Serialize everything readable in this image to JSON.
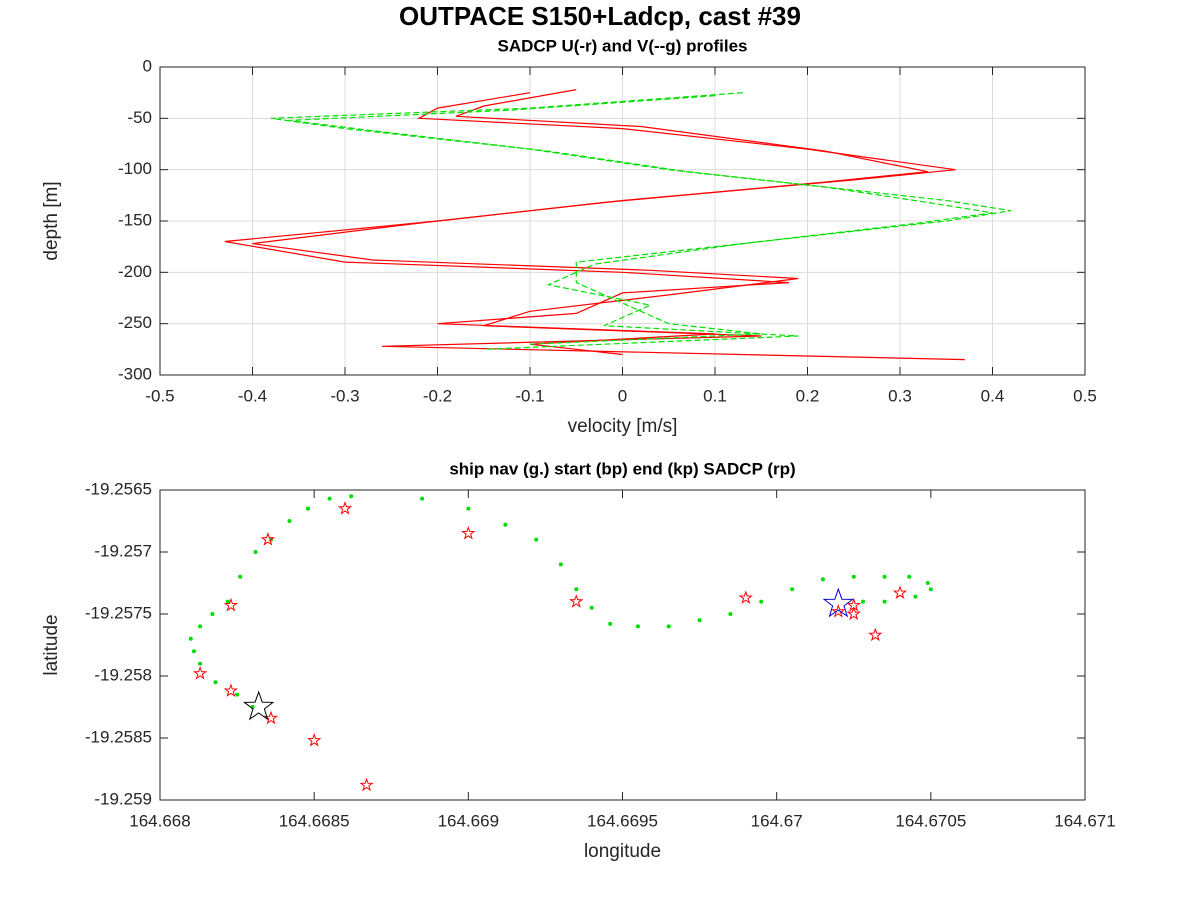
{
  "title": "OUTPACE S150+Ladcp, cast #39",
  "chart_data": [
    {
      "type": "line",
      "title": "SADCP U(-r) and V(--g) profiles",
      "xlabel": "velocity [m/s]",
      "ylabel": "depth [m]",
      "xlim": [
        -0.5,
        0.5
      ],
      "ylim": [
        -300,
        0
      ],
      "xticks": [
        -0.5,
        -0.4,
        -0.3,
        -0.2,
        -0.1,
        0,
        0.1,
        0.2,
        0.3,
        0.4,
        0.5
      ],
      "yticks": [
        -300,
        -250,
        -200,
        -150,
        -100,
        -50,
        0
      ],
      "grid": true,
      "series": [
        {
          "color": "#ff0000",
          "dash": false,
          "x": [
            -0.1,
            -0.2,
            -0.22,
            0.0,
            0.2,
            0.36,
            0.25,
            0.0,
            -0.2,
            -0.43,
            -0.3,
            0.0,
            0.18,
            0.0,
            -0.05,
            -0.2,
            0.1,
            -0.1,
            0.0
          ],
          "values": [
            -25,
            -40,
            -50,
            -60,
            -80,
            -100,
            -110,
            -130,
            -150,
            -170,
            -190,
            -200,
            -210,
            -220,
            -240,
            -250,
            -260,
            -270,
            -280
          ]
        },
        {
          "color": "#ff0000",
          "dash": false,
          "x": [
            -0.05,
            -0.15,
            -0.18,
            0.02,
            0.22,
            0.33,
            0.22,
            -0.02,
            -0.22,
            -0.4,
            -0.27,
            0.03,
            0.19,
            0.05,
            -0.1,
            -0.15,
            0.15,
            -0.26,
            0.37
          ],
          "values": [
            -22,
            -38,
            -48,
            -58,
            -82,
            -102,
            -112,
            -132,
            -152,
            -172,
            -188,
            -198,
            -206,
            -222,
            -238,
            -252,
            -262,
            -272,
            -285
          ]
        },
        {
          "color": "#00e000",
          "dash": true,
          "x": [
            0.13,
            -0.1,
            -0.38,
            -0.3,
            -0.1,
            0.05,
            0.2,
            0.35,
            0.42,
            0.35,
            0.15,
            -0.05,
            -0.05,
            0.0,
            0.05,
            0.15,
            -0.1
          ],
          "values": [
            -25,
            -40,
            -50,
            -60,
            -80,
            -100,
            -115,
            -130,
            -140,
            -150,
            -170,
            -190,
            -210,
            -230,
            -250,
            -260,
            -270
          ]
        },
        {
          "color": "#00e000",
          "dash": true,
          "x": [
            0.1,
            -0.12,
            -0.36,
            -0.27,
            -0.08,
            0.07,
            0.22,
            0.33,
            0.4,
            0.32,
            0.13,
            -0.03,
            -0.08,
            0.03,
            -0.02,
            0.19,
            -0.15
          ],
          "values": [
            -28,
            -42,
            -52,
            -62,
            -82,
            -102,
            -117,
            -132,
            -142,
            -152,
            -172,
            -192,
            -212,
            -232,
            -252,
            -262,
            -275
          ]
        }
      ]
    },
    {
      "type": "scatter",
      "title": "ship nav (g.) start (bp) end (kp) SADCP (rp)",
      "xlabel": "longitude",
      "ylabel": "latitude",
      "xlim": [
        164.668,
        164.671
      ],
      "ylim": [
        -19.259,
        -19.2565
      ],
      "xticks": [
        164.668,
        164.6685,
        164.669,
        164.6695,
        164.67,
        164.6705,
        164.671
      ],
      "yticks": [
        -19.259,
        -19.2585,
        -19.258,
        -19.2575,
        -19.257,
        -19.2565
      ],
      "grid": false,
      "series": [
        {
          "color": "#00dd00",
          "marker": "dot",
          "x": [
            164.6683,
            164.66825,
            164.66818,
            164.66813,
            164.66811,
            164.6681,
            164.66813,
            164.66817,
            164.66822,
            164.66826,
            164.66831,
            164.66836,
            164.66842,
            164.66848,
            164.66855,
            164.66862,
            164.66885,
            164.669,
            164.66912,
            164.66922,
            164.6693,
            164.66935,
            164.6694,
            164.66946,
            164.66955,
            164.66965,
            164.66975,
            164.66985,
            164.66995,
            164.67005,
            164.67015,
            164.67025,
            164.67035,
            164.67043,
            164.67049,
            164.6705,
            164.67045,
            164.67035,
            164.67028
          ],
          "values": [
            -19.25825,
            -19.25815,
            -19.25805,
            -19.2579,
            -19.2578,
            -19.2577,
            -19.2576,
            -19.2575,
            -19.2574,
            -19.2572,
            -19.257,
            -19.2569,
            -19.25675,
            -19.25665,
            -19.25657,
            -19.25655,
            -19.25657,
            -19.25665,
            -19.25678,
            -19.2569,
            -19.2571,
            -19.2573,
            -19.25745,
            -19.25758,
            -19.2576,
            -19.2576,
            -19.25755,
            -19.2575,
            -19.2574,
            -19.2573,
            -19.25722,
            -19.2572,
            -19.2572,
            -19.2572,
            -19.25725,
            -19.2573,
            -19.25736,
            -19.2574,
            -19.2574
          ]
        },
        {
          "color": "#ff0000",
          "marker": "star",
          "x": [
            164.6686,
            164.669,
            164.66835,
            164.66823,
            164.66813,
            164.66823,
            164.66836,
            164.6685,
            164.66867,
            164.66935,
            164.6699,
            164.6702,
            164.67025,
            164.67025,
            164.67032,
            164.6704
          ],
          "values": [
            -19.25665,
            -19.25685,
            -19.2569,
            -19.25743,
            -19.25798,
            -19.25812,
            -19.25834,
            -19.25852,
            -19.25888,
            -19.2574,
            -19.25737,
            -19.25748,
            -19.25743,
            -19.2575,
            -19.25767,
            -19.25733
          ]
        },
        {
          "color": "#0000cc",
          "marker": "big-star",
          "x": [
            164.6702
          ],
          "values": [
            -19.25742
          ]
        },
        {
          "color": "#000000",
          "marker": "big-star",
          "x": [
            164.66832
          ],
          "values": [
            -19.25825
          ]
        }
      ]
    }
  ]
}
